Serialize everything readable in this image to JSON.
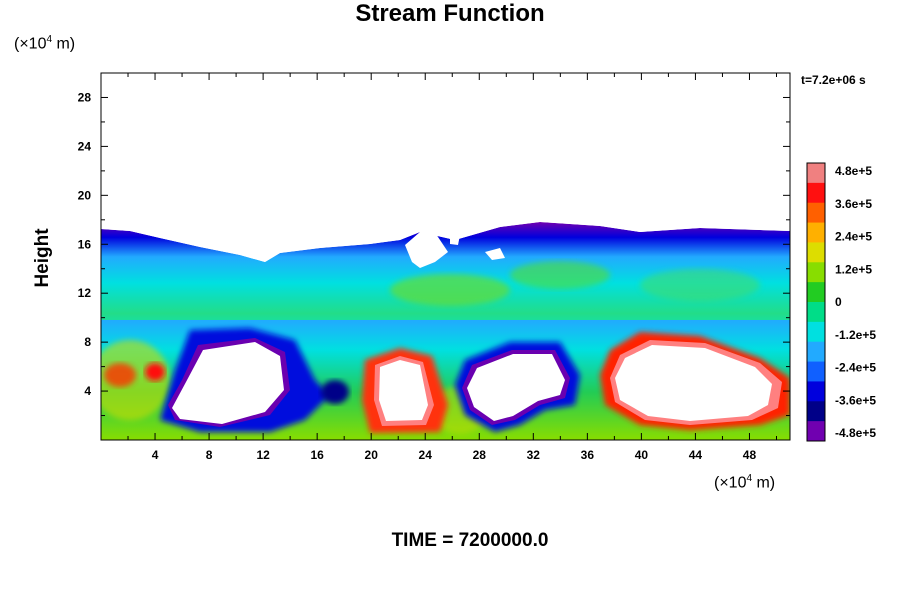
{
  "chart_data": {
    "type": "heatmap",
    "title": "Stream Function",
    "xlabel": "",
    "ylabel": "Height",
    "x_unit_label": {
      "pre": "(×10",
      "exp": "4",
      "post": " m)"
    },
    "y_unit_label": {
      "pre": "(×10",
      "exp": "4",
      "post": " m)"
    },
    "xlim": [
      0,
      51
    ],
    "ylim": [
      0,
      30
    ],
    "x_ticks": [
      4,
      8,
      12,
      16,
      20,
      24,
      28,
      32,
      36,
      40,
      44,
      48
    ],
    "x_tick_labels": [
      "4",
      "8",
      "12",
      "16",
      "20",
      "24",
      "28",
      "32",
      "36",
      "40",
      "44",
      "48"
    ],
    "y_ticks": [
      4,
      8,
      12,
      16,
      20,
      24,
      28
    ],
    "y_tick_labels": [
      "4",
      "8",
      "12",
      "16",
      "20",
      "24",
      "28"
    ],
    "time_label": "t=7.2e+06 s",
    "footer": "TIME = 7200000.0",
    "colorbar": {
      "min": -480000,
      "max": 480000,
      "ticks": [
        480000,
        360000,
        240000,
        120000,
        0,
        -120000,
        -240000,
        -360000,
        -480000
      ],
      "tick_labels": [
        "4.8e+5",
        "3.6e+5",
        "2.4e+5",
        "1.2e+5",
        "0",
        "-1.2e+5",
        "-2.4e+5",
        "-3.6e+5",
        "-4.8e+5"
      ],
      "colors": [
        "#f08080",
        "#ff1010",
        "#ff6000",
        "#ffb000",
        "#dddd00",
        "#88dd00",
        "#22cc22",
        "#00dd88",
        "#00e0e0",
        "#22aaff",
        "#1060ff",
        "#0000dd",
        "#000088",
        "#7000b0"
      ]
    },
    "grid": false,
    "features": {
      "field_top_height": 16.6,
      "clear_sky_above": true,
      "cells": [
        {
          "sign": "negative",
          "center": [
            10,
            4.5
          ],
          "note": "strong negative cell"
        },
        {
          "sign": "positive",
          "center": [
            22,
            3.8
          ],
          "note": "strong positive cell"
        },
        {
          "sign": "negative",
          "center": [
            31,
            4.8
          ],
          "note": "strong negative cell"
        },
        {
          "sign": "positive",
          "center": [
            43,
            4.8
          ],
          "note": "strong positive cell"
        }
      ]
    }
  }
}
